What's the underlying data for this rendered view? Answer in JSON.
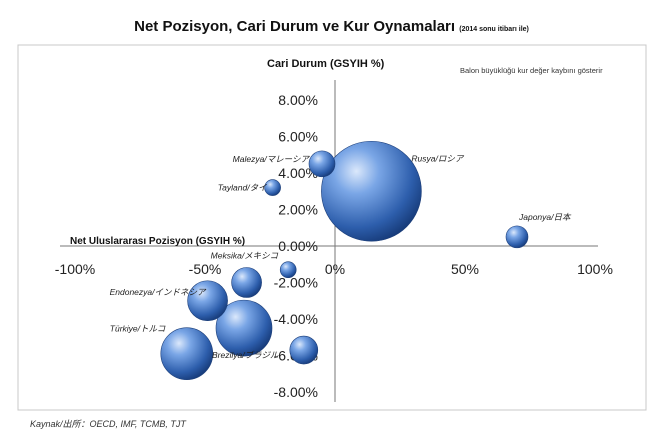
{
  "title": "Net Pozisyon, Cari Durum ve Kur Oynamaları",
  "title_note": "(2014 sonu itibarı ile)",
  "source": "Kaynak/出所：OECD, IMF, TCMB, TJT",
  "chart_data": {
    "type": "bubble",
    "title": "Net Pozisyon, Cari Durum ve Kur Oynamaları",
    "subtitle": "(2014 sonu itibarı ile)",
    "xlabel": "Net Uluslararası Pozisyon (GSYIH %)",
    "ylabel": "Cari Durum (GSYIH %)",
    "size_note": "Balon büyüklüğü kur değer kaybını gösterir",
    "xlim": [
      -100,
      100
    ],
    "ylim": [
      -8,
      8
    ],
    "x_ticks": [
      -100,
      -50,
      0,
      50,
      100
    ],
    "x_tick_labels": [
      "-100%",
      "-50%",
      "0%",
      "50%",
      "100%"
    ],
    "y_ticks": [
      8,
      6,
      4,
      2,
      0,
      -2,
      -4,
      -6,
      -8
    ],
    "y_tick_labels": [
      "8.00%",
      "6.00%",
      "4.00%",
      "2.00%",
      "0.00%",
      "-2.00%",
      "-4.00%",
      "-6.00%",
      "-8.00%"
    ],
    "grid": false,
    "legend": "none",
    "bubble_color": "#3a6db5",
    "points": [
      {
        "label": "Rusya/ロシア",
        "x": 14,
        "y": 3.0,
        "size": 50
      },
      {
        "label": "Japonya/日本",
        "x": 70,
        "y": 0.5,
        "size": 11
      },
      {
        "label": "Malezya/マレーシア",
        "x": -5,
        "y": 4.5,
        "size": 13
      },
      {
        "label": "Tayland/タイ",
        "x": -24,
        "y": 3.2,
        "size": 8
      },
      {
        "label": "Meksika/メキシコ",
        "x": -18,
        "y": -1.3,
        "size": 8
      },
      {
        "label": "Endonezya/インドネシア",
        "x": -49,
        "y": -3.0,
        "size": 20
      },
      {
        "label": "",
        "x": -34,
        "y": -2.0,
        "size": 15
      },
      {
        "label": "Türkiye/トルコ",
        "x": -57,
        "y": -5.9,
        "size": 26
      },
      {
        "label": "Brezilya/ブラジル",
        "x": -35,
        "y": -4.5,
        "size": 28
      },
      {
        "label": "",
        "x": -12,
        "y": -5.7,
        "size": 14
      }
    ]
  }
}
